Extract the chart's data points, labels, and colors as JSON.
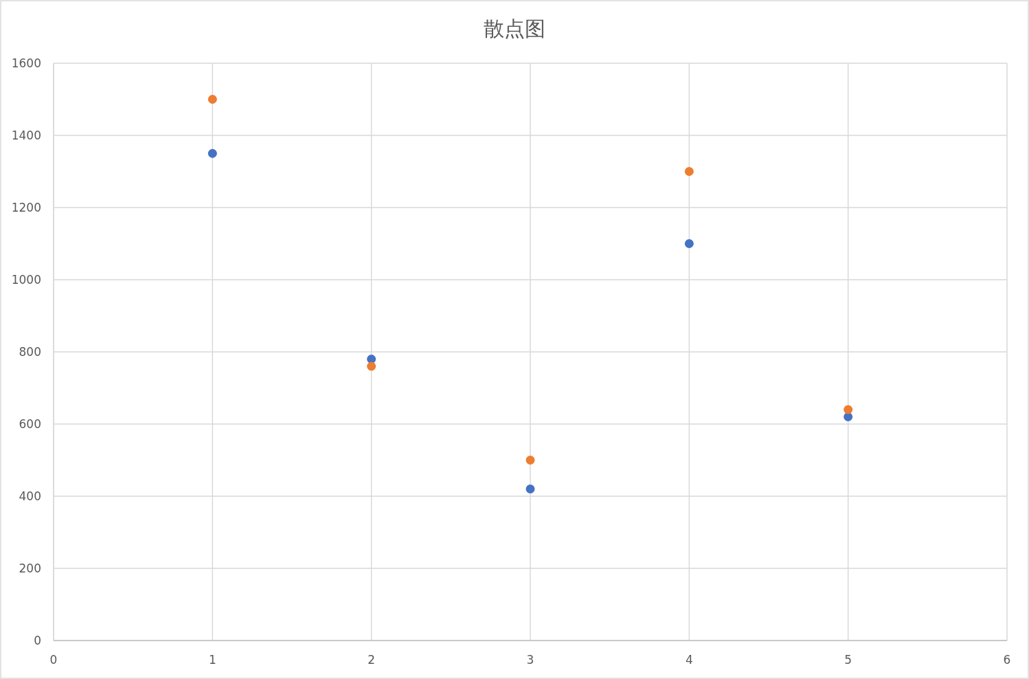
{
  "chart_data": {
    "type": "scatter",
    "title": "散点图",
    "x": [
      1,
      2,
      3,
      4,
      5
    ],
    "series": [
      {
        "color": "#4472c4",
        "values": [
          1350,
          780,
          420,
          1100,
          620
        ]
      },
      {
        "color": "#ed7d31",
        "values": [
          1500,
          760,
          500,
          1300,
          640
        ]
      }
    ],
    "xlim": [
      0,
      6
    ],
    "ylim": [
      0,
      1600
    ],
    "xticks": [
      0,
      1,
      2,
      3,
      4,
      5,
      6
    ],
    "yticks": [
      0,
      200,
      400,
      600,
      800,
      1000,
      1200,
      1400,
      1600
    ],
    "grid": true,
    "marker": "circle"
  }
}
